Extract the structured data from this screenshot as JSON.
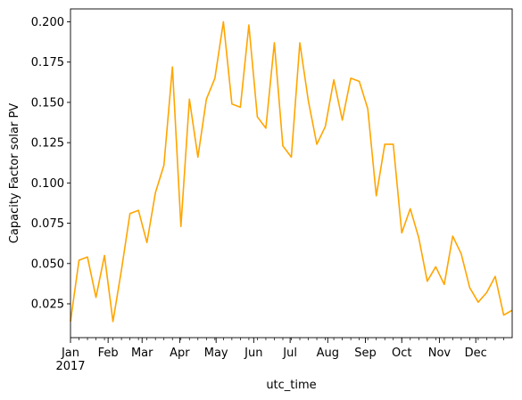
{
  "chart_data": {
    "type": "line",
    "title": "",
    "xlabel": "utc_time",
    "ylabel": "Capacity Factor solar PV",
    "x_start": "2017-01-01",
    "x_end": "2017-12-31",
    "ylim": [
      0.004,
      0.208
    ],
    "grid": false,
    "legend": "none",
    "line_color": "#FFA500",
    "x_ticks": [
      {
        "date": "2017-01-01",
        "label": "Jan",
        "sublabel": "2017"
      },
      {
        "date": "2017-02-01",
        "label": "Feb"
      },
      {
        "date": "2017-03-01",
        "label": "Mar"
      },
      {
        "date": "2017-04-01",
        "label": "Apr"
      },
      {
        "date": "2017-05-01",
        "label": "May"
      },
      {
        "date": "2017-06-01",
        "label": "Jun"
      },
      {
        "date": "2017-07-01",
        "label": "Jul"
      },
      {
        "date": "2017-08-01",
        "label": "Aug"
      },
      {
        "date": "2017-09-01",
        "label": "Sep"
      },
      {
        "date": "2017-10-01",
        "label": "Oct"
      },
      {
        "date": "2017-11-01",
        "label": "Nov"
      },
      {
        "date": "2017-12-01",
        "label": "Dec"
      }
    ],
    "y_ticks": [
      {
        "value": 0.025,
        "label": "0.025"
      },
      {
        "value": 0.05,
        "label": "0.050"
      },
      {
        "value": 0.075,
        "label": "0.075"
      },
      {
        "value": 0.1,
        "label": "0.100"
      },
      {
        "value": 0.125,
        "label": "0.125"
      },
      {
        "value": 0.15,
        "label": "0.150"
      },
      {
        "value": 0.175,
        "label": "0.175"
      },
      {
        "value": 0.2,
        "label": "0.200"
      }
    ],
    "series": [
      {
        "x": [
          "2017-01-01",
          "2017-01-08",
          "2017-01-15",
          "2017-01-22",
          "2017-01-29",
          "2017-02-05",
          "2017-02-12",
          "2017-02-19",
          "2017-02-26",
          "2017-03-05",
          "2017-03-12",
          "2017-03-19",
          "2017-03-26",
          "2017-04-02",
          "2017-04-09",
          "2017-04-16",
          "2017-04-23",
          "2017-04-30",
          "2017-05-07",
          "2017-05-14",
          "2017-05-21",
          "2017-05-28",
          "2017-06-04",
          "2017-06-11",
          "2017-06-18",
          "2017-06-25",
          "2017-07-02",
          "2017-07-09",
          "2017-07-16",
          "2017-07-23",
          "2017-07-30",
          "2017-08-06",
          "2017-08-13",
          "2017-08-20",
          "2017-08-27",
          "2017-09-03",
          "2017-09-10",
          "2017-09-17",
          "2017-09-24",
          "2017-10-01",
          "2017-10-08",
          "2017-10-15",
          "2017-10-22",
          "2017-10-29",
          "2017-11-05",
          "2017-11-12",
          "2017-11-19",
          "2017-11-26",
          "2017-12-03",
          "2017-12-10",
          "2017-12-17",
          "2017-12-24",
          "2017-12-31"
        ],
        "values": [
          0.014,
          0.052,
          0.054,
          0.029,
          0.055,
          0.014,
          0.046,
          0.081,
          0.083,
          0.063,
          0.094,
          0.111,
          0.172,
          0.073,
          0.152,
          0.116,
          0.152,
          0.165,
          0.2,
          0.149,
          0.147,
          0.198,
          0.141,
          0.134,
          0.187,
          0.123,
          0.116,
          0.187,
          0.151,
          0.124,
          0.135,
          0.164,
          0.139,
          0.165,
          0.163,
          0.146,
          0.092,
          0.124,
          0.124,
          0.069,
          0.084,
          0.066,
          0.039,
          0.048,
          0.037,
          0.067,
          0.056,
          0.035,
          0.026,
          0.032,
          0.042,
          0.018,
          0.021
        ]
      }
    ]
  }
}
